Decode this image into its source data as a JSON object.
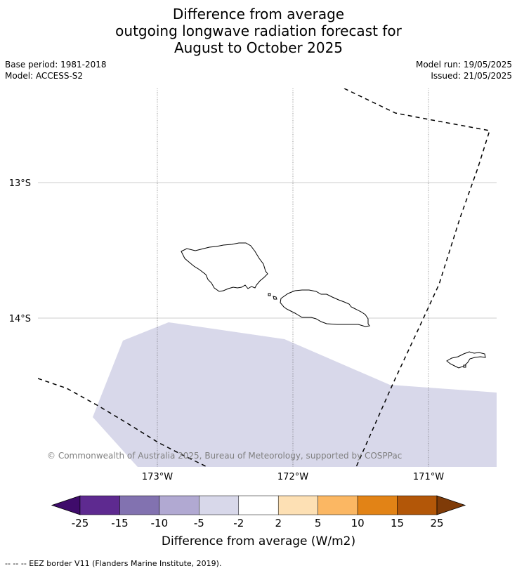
{
  "title": {
    "line1": "Difference from average",
    "line2": "outgoing longwave radiation forecast for",
    "line3": "August to October 2025"
  },
  "meta": {
    "base_period": "Base period: 1981-2018",
    "model": "Model: ACCESS-S2",
    "model_run": "Model run: 19/05/2025",
    "issued": "Issued: 21/05/2025"
  },
  "map": {
    "lat_labels": [
      "13°S",
      "14°S"
    ],
    "lon_labels": [
      "173°W",
      "172°W",
      "171°W"
    ],
    "copyright": "© Commonwealth of Australia 2025, Bureau of Meteorology, supported by COSPPac",
    "anomaly_region_color": "#d8d8ea",
    "anomaly_region_category": "-5 to -2"
  },
  "colorbar": {
    "ticks": [
      "-25",
      "-15",
      "-10",
      "-5",
      "-2",
      "2",
      "5",
      "10",
      "15",
      "25"
    ],
    "colors": [
      "#3f0b6b",
      "#5e2a90",
      "#8272b0",
      "#b1a9d2",
      "#d8d8ea",
      "#ffffff",
      "#fde0b4",
      "#fbb763",
      "#e28316",
      "#b35708",
      "#7f3b08"
    ],
    "label": "Difference from average (W/m2)"
  },
  "footnote": "--  --  -- EEZ border V11 (Flanders Marine Institute, 2019)."
}
